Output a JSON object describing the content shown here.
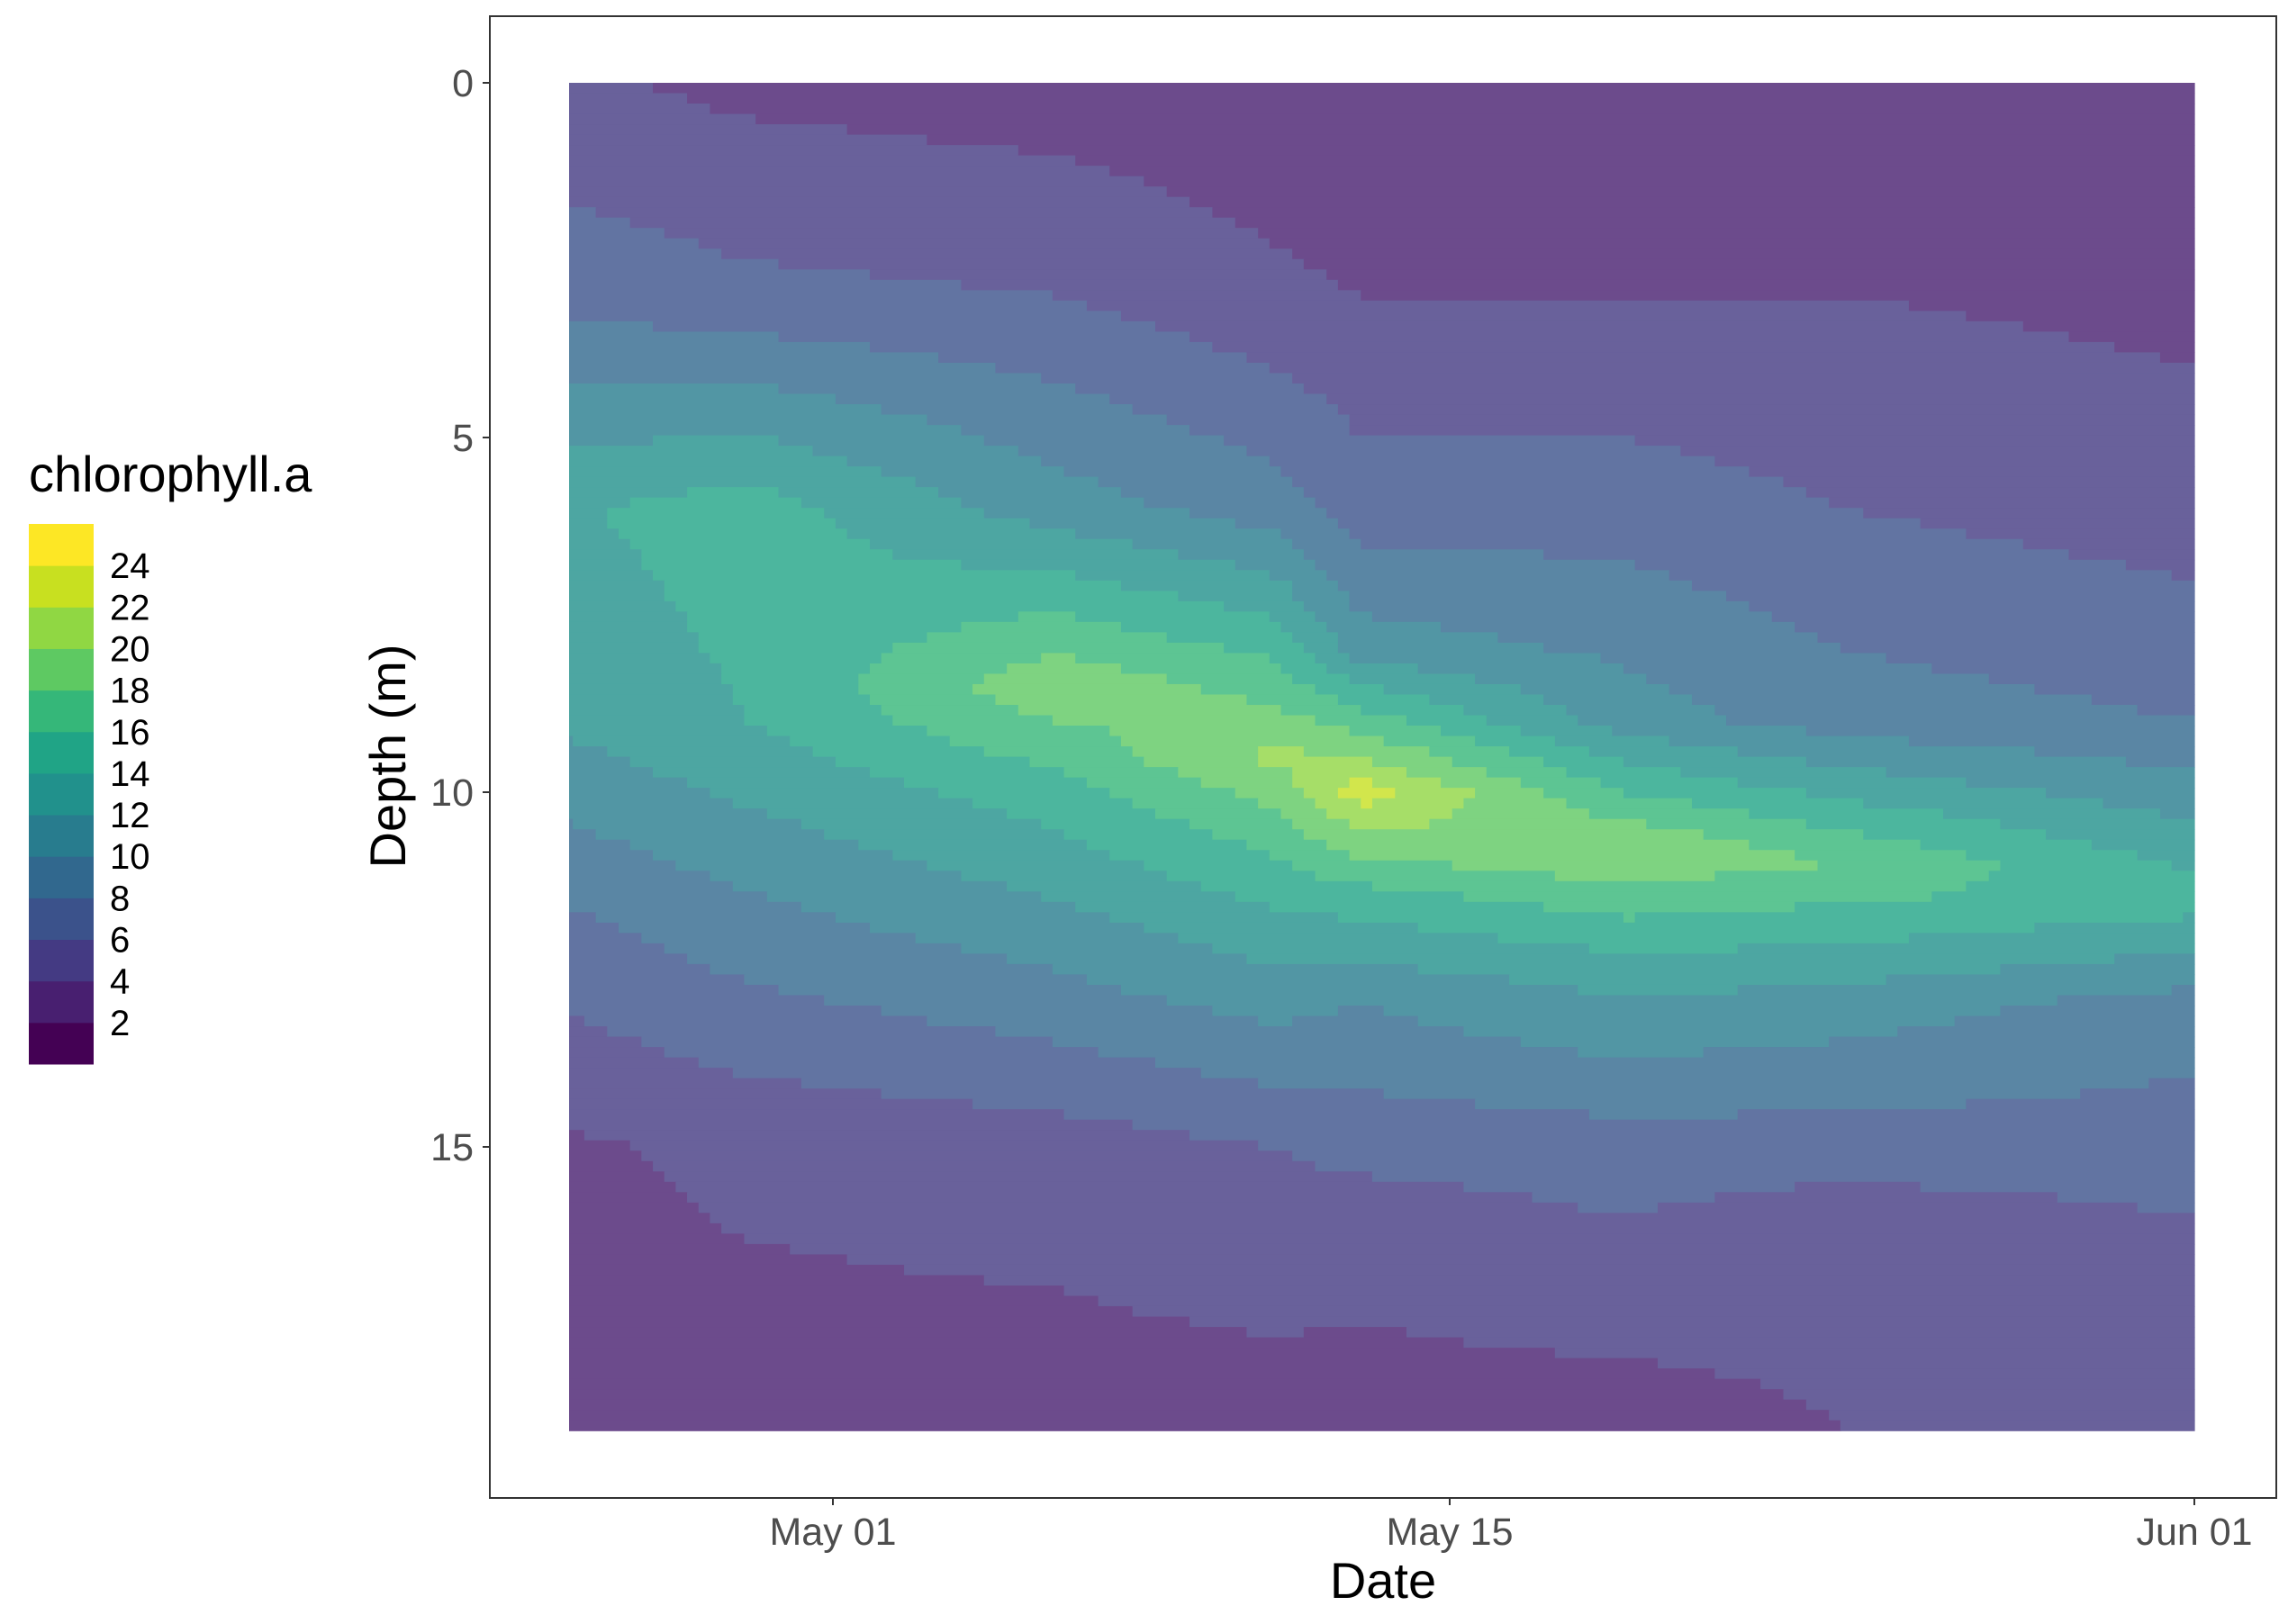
{
  "chart_data": {
    "type": "filled-contour",
    "xlabel": "Date",
    "ylabel": "Depth (m)",
    "x_ticks": [
      "May 01",
      "May 15",
      "Jun 01"
    ],
    "x_tick_values": [
      "2021-05-01",
      "2021-05-15",
      "2021-06-01"
    ],
    "xlim": [
      "2021-04-23",
      "2021-06-02"
    ],
    "y_ticks": [
      "0",
      "5",
      "10",
      "15"
    ],
    "y_tick_values": [
      0,
      5,
      10,
      15
    ],
    "ylim": [
      0,
      19
    ],
    "y_reversed": true,
    "grid": false,
    "legend": {
      "title": "chlorophyll.a",
      "position": "left",
      "labels": [
        "24",
        "22",
        "20",
        "18",
        "16",
        "14",
        "12",
        "10",
        "8",
        "6",
        "4",
        "2"
      ]
    },
    "colorscale": "viridis",
    "color_bins": [
      {
        "from": 0,
        "to": 2,
        "color": "#440154"
      },
      {
        "from": 2,
        "to": 4,
        "color": "#481f70"
      },
      {
        "from": 4,
        "to": 6,
        "color": "#443a83"
      },
      {
        "from": 6,
        "to": 8,
        "color": "#3b528b"
      },
      {
        "from": 8,
        "to": 10,
        "color": "#31688e"
      },
      {
        "from": 10,
        "to": 12,
        "color": "#287c8e"
      },
      {
        "from": 12,
        "to": 14,
        "color": "#21918c"
      },
      {
        "from": 14,
        "to": 16,
        "color": "#20a486"
      },
      {
        "from": 16,
        "to": 18,
        "color": "#35b779"
      },
      {
        "from": 18,
        "to": 20,
        "color": "#5ec962"
      },
      {
        "from": 20,
        "to": 22,
        "color": "#90d743"
      },
      {
        "from": 22,
        "to": 24,
        "color": "#c8e020"
      },
      {
        "from": 24,
        "to": 26,
        "color": "#fde725"
      }
    ],
    "depth_profiles": [
      {
        "date": "2021-04-24",
        "depths": [
          0,
          3,
          6,
          9,
          12,
          15,
          19
        ],
        "values": [
          4.5,
          7.5,
          13.5,
          12,
          7,
          3.5,
          3
        ]
      },
      {
        "date": "2021-04-29",
        "depths": [
          0,
          3,
          6,
          9,
          12,
          15,
          19
        ],
        "values": [
          3.5,
          6.5,
          15,
          14,
          9,
          4.5,
          3
        ]
      },
      {
        "date": "2021-05-06",
        "depths": [
          0,
          3,
          6,
          8.5,
          10,
          12,
          15,
          19
        ],
        "values": [
          3,
          6,
          11,
          19.5,
          15,
          11,
          5,
          3
        ]
      },
      {
        "date": "2021-05-11",
        "depths": [
          0,
          3,
          6,
          9.5,
          10.5,
          12,
          15,
          19
        ],
        "values": [
          2.5,
          4.5,
          9,
          20.5,
          17,
          13,
          6,
          3
        ]
      },
      {
        "date": "2021-05-13",
        "depths": [
          0,
          3,
          6,
          8,
          10,
          11.5,
          13,
          16,
          19
        ],
        "values": [
          2,
          4,
          7,
          11,
          23,
          15,
          10,
          5,
          3
        ]
      },
      {
        "date": "2021-05-19",
        "depths": [
          0,
          3,
          6,
          9,
          10.8,
          12.5,
          15,
          19
        ],
        "values": [
          3,
          4,
          7,
          11,
          20,
          13,
          7,
          3
        ]
      },
      {
        "date": "2021-05-24",
        "depths": [
          0,
          3,
          6,
          9,
          11,
          13,
          16,
          19
        ],
        "values": [
          3,
          4,
          6,
          9,
          18,
          11,
          5,
          4
        ]
      },
      {
        "date": "2021-06-01",
        "depths": [
          0,
          3,
          6,
          9,
          11.5,
          13,
          16,
          19
        ],
        "values": [
          4,
          3.5,
          5,
          8,
          15,
          9,
          6,
          5
        ]
      }
    ]
  }
}
